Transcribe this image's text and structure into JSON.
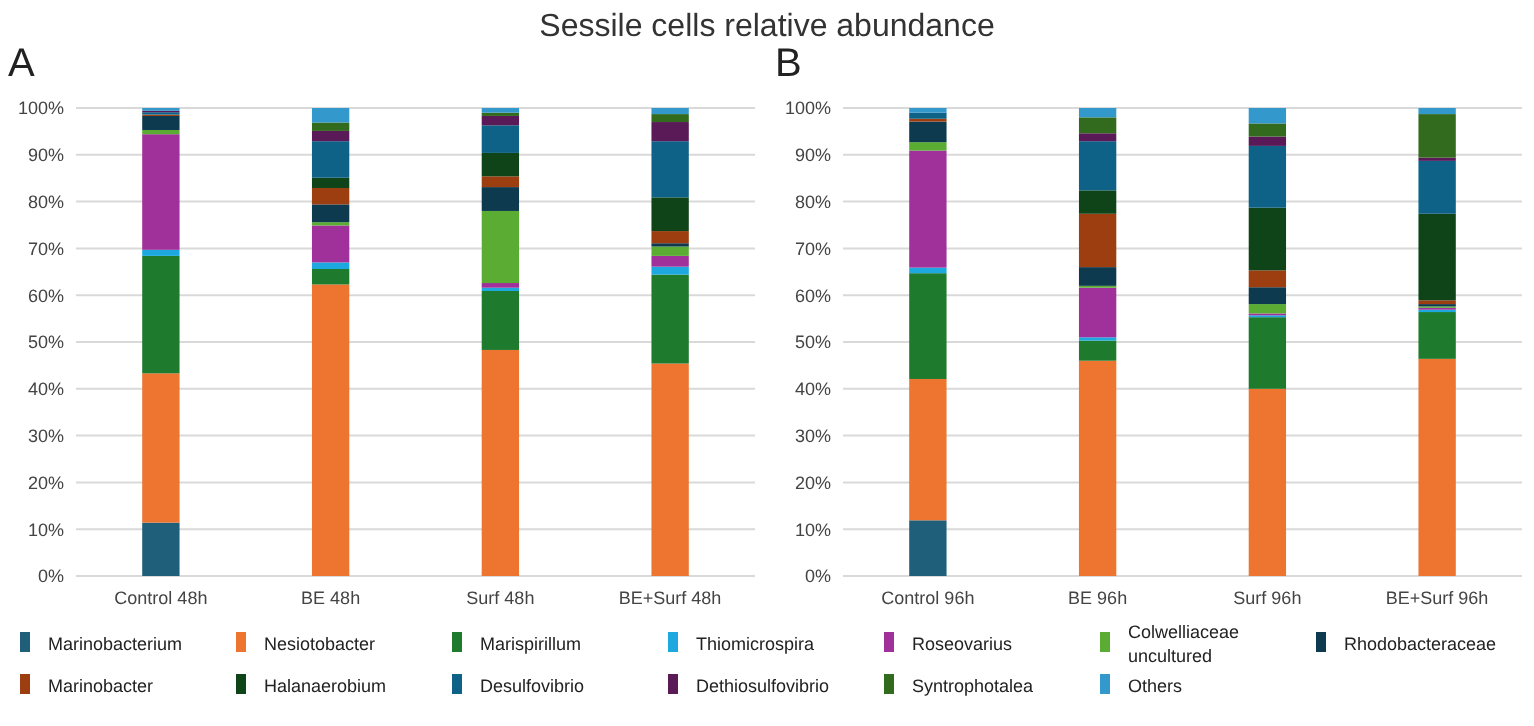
{
  "chart_data": [
    {
      "type": "bar",
      "title": "Sessile cells relative abundance",
      "subtitle": "A",
      "stacked": true,
      "grid": "y",
      "legend": "bottom",
      "categories": [
        "Control 48h",
        "BE 48h",
        "Surf 48h",
        "BE+Surf 48h"
      ],
      "ylim": [
        0,
        100
      ],
      "yticks": [
        {
          "value": 0,
          "label": "0%"
        },
        {
          "value": 10,
          "label": "10%"
        },
        {
          "value": 20,
          "label": "20%"
        },
        {
          "value": 30,
          "label": "30%"
        },
        {
          "value": 40,
          "label": "40%"
        },
        {
          "value": 50,
          "label": "50%"
        },
        {
          "value": 60,
          "label": "60%"
        },
        {
          "value": 70,
          "label": "70%"
        },
        {
          "value": 80,
          "label": "80%"
        },
        {
          "value": 90,
          "label": "90%"
        },
        {
          "value": 100,
          "label": "100%"
        }
      ],
      "series": [
        {
          "name": "Marinobacterium",
          "color": "#1f5f7a",
          "values": [
            11.4,
            0,
            0,
            0
          ]
        },
        {
          "name": "Nesiotobacter",
          "color": "#ed7530",
          "values": [
            31.9,
            62.3,
            48.3,
            45.4
          ]
        },
        {
          "name": "Marispirillum",
          "color": "#1e7a2d",
          "values": [
            25.1,
            3.3,
            12.6,
            19.0
          ]
        },
        {
          "name": "Thiomicrospira",
          "color": "#1ea8e0",
          "values": [
            1.3,
            1.4,
            0.7,
            1.7
          ]
        },
        {
          "name": "Roseovarius",
          "color": "#a0309a",
          "values": [
            24.7,
            7.9,
            1.0,
            2.3
          ]
        },
        {
          "name": "Colwelliaceae uncultured",
          "color": "#5aad32",
          "values": [
            0.9,
            0.7,
            15.4,
            2.0
          ]
        },
        {
          "name": "Rhodobacteraceae",
          "color": "#0e3a50",
          "values": [
            3.0,
            3.8,
            5.1,
            0.7
          ]
        },
        {
          "name": "Marinobacter",
          "color": "#9c3e10",
          "values": [
            0.3,
            3.5,
            2.3,
            2.6
          ]
        },
        {
          "name": "Halanaerobium",
          "color": "#0f4418",
          "values": [
            0,
            2.2,
            5.0,
            7.2
          ]
        },
        {
          "name": "Desulfovibrio",
          "color": "#0e6288",
          "values": [
            0.5,
            7.8,
            5.9,
            12.0
          ]
        },
        {
          "name": "Dethiosulfovibrio",
          "color": "#5a1a58",
          "values": [
            0.3,
            2.2,
            2.0,
            4.1
          ]
        },
        {
          "name": "Syntrophotalea",
          "color": "#336b1e",
          "values": [
            0,
            1.8,
            0.7,
            1.7
          ]
        },
        {
          "name": "Others",
          "color": "#3399cc",
          "values": [
            0.6,
            3.1,
            1.0,
            1.3
          ]
        }
      ]
    },
    {
      "type": "bar",
      "subtitle": "B",
      "stacked": true,
      "grid": "y",
      "categories": [
        "Control 96h",
        "BE 96h",
        "Surf 96h",
        "BE+Surf 96h"
      ],
      "ylim": [
        0,
        100
      ],
      "yticks": [
        {
          "value": 0,
          "label": "0%"
        },
        {
          "value": 10,
          "label": "10%"
        },
        {
          "value": 20,
          "label": "20%"
        },
        {
          "value": 30,
          "label": "30%"
        },
        {
          "value": 40,
          "label": "40%"
        },
        {
          "value": 50,
          "label": "50%"
        },
        {
          "value": 60,
          "label": "60%"
        },
        {
          "value": 70,
          "label": "70%"
        },
        {
          "value": 80,
          "label": "80%"
        },
        {
          "value": 90,
          "label": "90%"
        },
        {
          "value": 100,
          "label": "100%"
        }
      ],
      "series": [
        {
          "color": "#1f5f7a",
          "values": [
            11.9,
            0,
            0,
            0
          ]
        },
        {
          "color": "#ed7530",
          "values": [
            30.2,
            46.0,
            40.0,
            46.4
          ]
        },
        {
          "color": "#1e7a2d",
          "values": [
            22.6,
            4.3,
            15.3,
            10.0
          ]
        },
        {
          "color": "#1ea8e0",
          "values": [
            1.2,
            0.7,
            0.4,
            0.5
          ]
        },
        {
          "color": "#a0309a",
          "values": [
            25.0,
            10.6,
            0.4,
            0.4
          ]
        },
        {
          "color": "#5aad32",
          "values": [
            1.8,
            0.4,
            2.0,
            0.3
          ]
        },
        {
          "color": "#0e3a50",
          "values": [
            4.4,
            4.0,
            3.6,
            0.5
          ]
        },
        {
          "color": "#9c3e10",
          "values": [
            0.6,
            11.4,
            3.6,
            0.8
          ]
        },
        {
          "color": "#0f4418",
          "values": [
            0,
            5.0,
            13.4,
            18.5
          ]
        },
        {
          "color": "#0e6288",
          "values": [
            1.3,
            10.5,
            13.2,
            11.3
          ]
        },
        {
          "color": "#5a1a58",
          "values": [
            0,
            1.7,
            2.0,
            0.7
          ]
        },
        {
          "color": "#336b1e",
          "values": [
            0,
            3.4,
            2.8,
            9.3
          ]
        },
        {
          "color": "#3399cc",
          "values": [
            1.0,
            2.0,
            3.3,
            1.3
          ]
        }
      ]
    }
  ]
}
